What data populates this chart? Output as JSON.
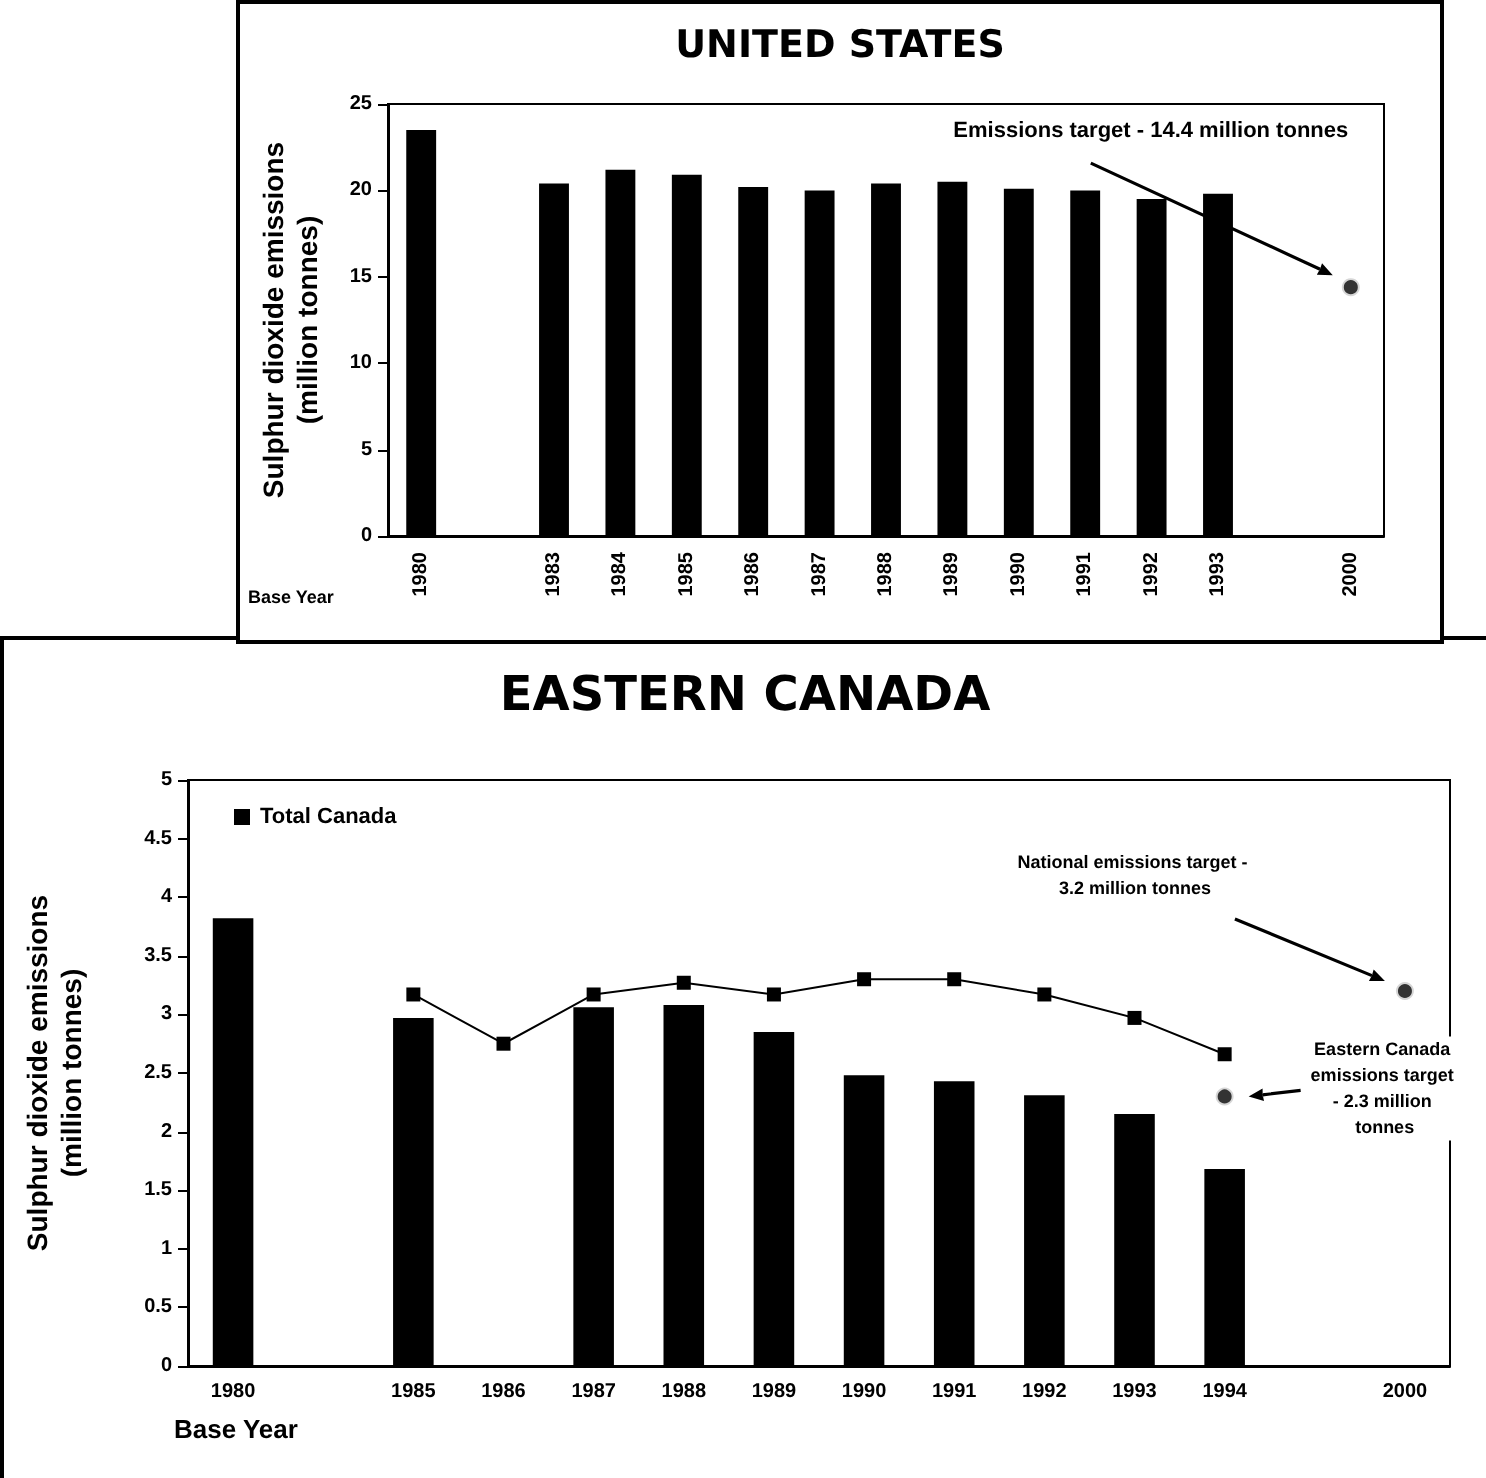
{
  "chart_data": [
    {
      "type": "bar",
      "title": "UNITED STATES",
      "ylabel": "Sulphur dioxide emissions (million tonnes)",
      "xlabel": "Base Year",
      "categories": [
        "1980",
        null,
        "1983",
        "1984",
        "1985",
        "1986",
        "1987",
        "1988",
        "1989",
        "1990",
        "1991",
        "1992",
        "1993",
        null,
        "2000"
      ],
      "series": [
        {
          "type": "bar",
          "color": "#000000",
          "values": [
            23.5,
            null,
            20.4,
            21.2,
            20.9,
            20.2,
            20.0,
            20.4,
            20.5,
            20.1,
            20.0,
            19.5,
            19.8,
            null,
            null
          ]
        },
        {
          "type": "scatter",
          "color": "#000000",
          "marker": "circle",
          "values": [
            null,
            null,
            null,
            null,
            null,
            null,
            null,
            null,
            null,
            null,
            null,
            null,
            null,
            null,
            14.4
          ]
        }
      ],
      "ylim": [
        0,
        25
      ],
      "yticks": [
        0,
        5,
        10,
        15,
        20,
        25
      ],
      "annotations": [
        "Emissions target - 14.4 million tonnes"
      ]
    },
    {
      "type": "bar",
      "title": "EASTERN CANADA",
      "ylabel": "Sulphur dioxide emissions (million tonnes)",
      "xlabel": "Base Year",
      "categories": [
        "1980",
        null,
        "1985",
        "1986",
        "1987",
        "1988",
        "1989",
        "1990",
        "1991",
        "1992",
        "1993",
        "1994",
        null,
        "2000"
      ],
      "series": [
        {
          "type": "bar",
          "color": "#000000",
          "values": [
            3.82,
            null,
            2.97,
            null,
            3.06,
            3.08,
            2.85,
            2.48,
            2.43,
            2.31,
            2.15,
            1.68,
            null,
            null
          ]
        },
        {
          "type": "line",
          "name": "Total Canada",
          "color": "#000000",
          "marker": "square",
          "values": [
            null,
            null,
            3.17,
            2.75,
            3.17,
            3.27,
            3.17,
            3.3,
            3.3,
            3.17,
            2.97,
            2.66,
            null,
            null
          ]
        },
        {
          "type": "scatter",
          "color": "#000000",
          "marker": "circle",
          "values": [
            null,
            null,
            null,
            null,
            null,
            null,
            null,
            null,
            null,
            null,
            null,
            null,
            null,
            3.2
          ]
        },
        {
          "type": "scatter",
          "color": "#000000",
          "marker": "circle",
          "values": [
            null,
            null,
            null,
            null,
            null,
            null,
            null,
            null,
            null,
            null,
            null,
            2.3,
            null,
            null
          ]
        }
      ],
      "ylim": [
        0,
        5
      ],
      "yticks": [
        0,
        0.5,
        1,
        1.5,
        2,
        2.5,
        3,
        3.5,
        4,
        4.5,
        5
      ],
      "legend": "top left",
      "annotations": [
        "National emissions target - 3.2 million tonnes",
        "Eastern Canada emissions target - 2.3 million tonnes"
      ]
    }
  ]
}
